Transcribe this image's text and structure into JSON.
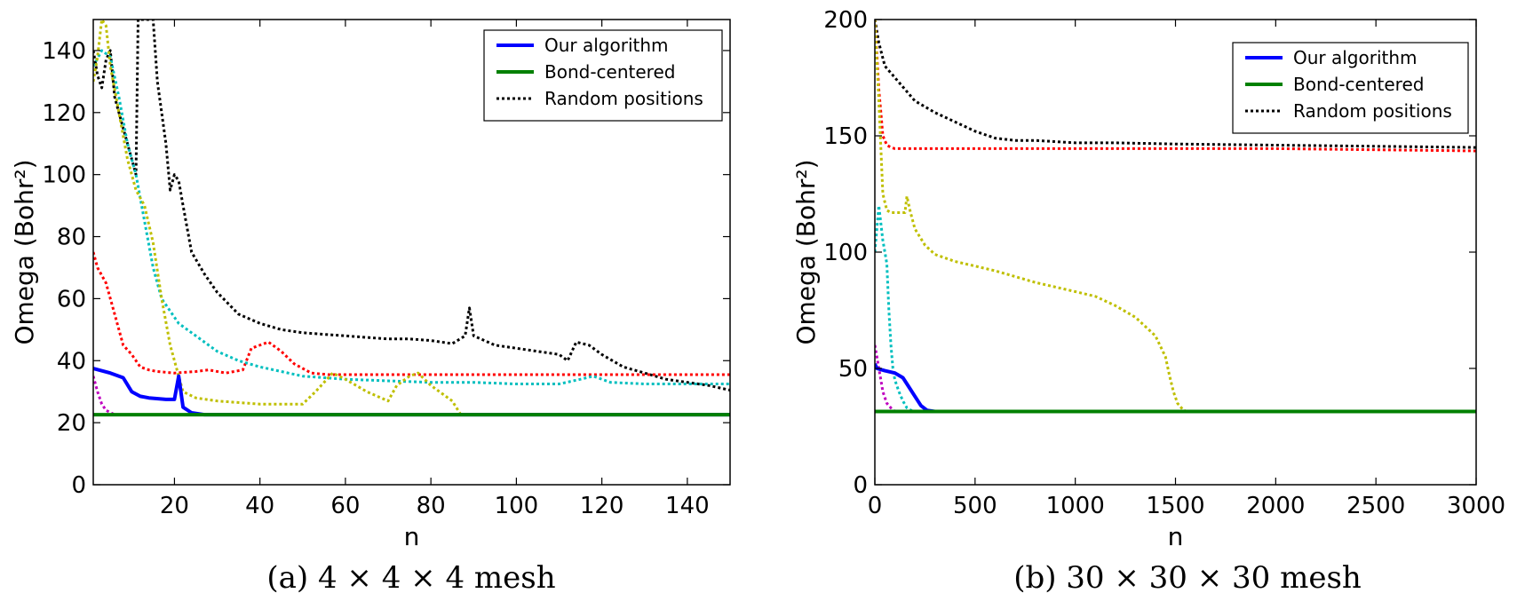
{
  "chart_data": [
    {
      "type": "line",
      "caption": "(a) 4 × 4 × 4 mesh",
      "xlabel": "n",
      "ylabel": "Omega (Bohr²)",
      "xlim": [
        1,
        150
      ],
      "ylim": [
        0,
        150
      ],
      "xticks": [
        20,
        40,
        60,
        80,
        100,
        120,
        140
      ],
      "yticks": [
        0,
        20,
        40,
        60,
        80,
        100,
        120,
        140
      ],
      "legend": {
        "position": "top-right",
        "entries": [
          {
            "label": "Our algorithm",
            "color": "#0000ff",
            "style": "solid"
          },
          {
            "label": "Bond-centered",
            "color": "#008000",
            "style": "solid"
          },
          {
            "label": "Random positions",
            "color": "#000000",
            "style": "dotted"
          }
        ]
      },
      "series": [
        {
          "name": "Our algorithm",
          "color": "#0000ff",
          "style": "solid",
          "x": [
            1,
            5,
            8,
            10,
            12,
            14,
            18,
            20,
            21,
            22,
            24,
            27,
            150
          ],
          "y": [
            37.5,
            36,
            34.5,
            30,
            28.5,
            28,
            27.5,
            27.5,
            35,
            25,
            23.2,
            22.6,
            22.6
          ]
        },
        {
          "name": "Bond-centered",
          "color": "#008000",
          "style": "solid",
          "x": [
            1,
            150
          ],
          "y": [
            22.6,
            22.6
          ]
        },
        {
          "color": "#000000",
          "style": "dotted",
          "x": [
            1,
            2,
            3,
            4,
            5,
            6,
            8,
            9,
            10,
            11,
            11.5,
            12,
            13,
            14,
            15,
            16,
            18,
            19,
            20,
            21,
            22,
            24,
            27,
            30,
            35,
            40,
            45,
            50,
            55,
            60,
            65,
            70,
            75,
            80,
            85,
            88,
            89,
            90,
            95,
            100,
            105,
            110,
            112,
            114,
            117,
            120,
            125,
            130,
            135,
            140,
            145,
            150
          ],
          "y": [
            140,
            132,
            128,
            137,
            140,
            125,
            115,
            110,
            105,
            100,
            150,
            150,
            150,
            150,
            150,
            130,
            110,
            95,
            100,
            98,
            90,
            75,
            68,
            62,
            55,
            52,
            50,
            49,
            48.5,
            48,
            47.5,
            47,
            47,
            46.5,
            45.5,
            48,
            57,
            48,
            45,
            44,
            43,
            42,
            40,
            46,
            45,
            42,
            38,
            36,
            34,
            33,
            32,
            30.5
          ]
        },
        {
          "color": "#ff0000",
          "style": "dotted",
          "x": [
            1,
            2,
            4,
            6,
            8,
            10,
            12,
            14,
            16,
            20,
            25,
            28,
            32,
            36,
            38,
            42,
            45,
            48,
            52,
            56,
            60,
            70,
            80,
            90,
            100,
            120,
            150
          ],
          "y": [
            75,
            70,
            65,
            55,
            45,
            42,
            38,
            37,
            36.5,
            36,
            36.5,
            37,
            36,
            37,
            44,
            46,
            43,
            39,
            36,
            35.5,
            35.5,
            35.5,
            35.5,
            35.5,
            35.5,
            35.5,
            35.5
          ]
        },
        {
          "color": "#00bfbf",
          "style": "dotted",
          "x": [
            1,
            3,
            5,
            7,
            9,
            11,
            13,
            15,
            17,
            19,
            21,
            25,
            30,
            35,
            40,
            50,
            60,
            70,
            80,
            90,
            100,
            110,
            115,
            118,
            122,
            130,
            140,
            150
          ],
          "y": [
            135,
            140,
            138,
            125,
            110,
            100,
            85,
            70,
            60,
            56,
            52,
            48,
            43,
            40,
            38,
            35,
            34,
            33.5,
            33,
            33,
            32.5,
            32.5,
            34,
            35,
            33,
            32.5,
            32.5,
            32.5
          ]
        },
        {
          "color": "#bfbf00",
          "style": "dotted",
          "x": [
            1,
            2,
            3,
            4,
            5,
            7,
            9,
            11,
            13,
            15,
            17,
            19,
            21,
            22,
            25,
            30,
            40,
            50,
            53,
            55,
            57,
            60,
            65,
            70,
            72,
            75,
            77,
            80,
            85,
            87,
            90,
            150
          ],
          "y": [
            130,
            138,
            150,
            148,
            135,
            120,
            105,
            95,
            90,
            78,
            60,
            45,
            35,
            30,
            28,
            27,
            26,
            26,
            30,
            33,
            36,
            34,
            30,
            27,
            32,
            35,
            36,
            32,
            27,
            22.6,
            22.6,
            22.6
          ]
        },
        {
          "color": "#bf00bf",
          "style": "dotted",
          "x": [
            1,
            2,
            3,
            4,
            6,
            150
          ],
          "y": [
            35,
            30,
            26,
            24,
            22.6,
            22.6
          ]
        }
      ]
    },
    {
      "type": "line",
      "caption": "(b) 30 × 30 × 30 mesh",
      "xlabel": "n",
      "ylabel": "Omega (Bohr²)",
      "xlim": [
        0,
        3000
      ],
      "ylim": [
        0,
        200
      ],
      "xticks": [
        0,
        500,
        1000,
        1500,
        2000,
        2500,
        3000
      ],
      "yticks": [
        0,
        50,
        100,
        150,
        200
      ],
      "legend": {
        "position": "top-right",
        "entries": [
          {
            "label": "Our algorithm",
            "color": "#0000ff",
            "style": "solid"
          },
          {
            "label": "Bond-centered",
            "color": "#008000",
            "style": "solid"
          },
          {
            "label": "Random positions",
            "color": "#000000",
            "style": "dotted"
          }
        ]
      },
      "series": [
        {
          "name": "Our algorithm",
          "color": "#0000ff",
          "style": "solid",
          "x": [
            0,
            10,
            50,
            100,
            140,
            170,
            200,
            230,
            260,
            300,
            3000
          ],
          "y": [
            52,
            50,
            49,
            48,
            46,
            42,
            38,
            34,
            32,
            31.5,
            31.5
          ]
        },
        {
          "name": "Bond-centered",
          "color": "#008000",
          "style": "solid",
          "x": [
            0,
            3000
          ],
          "y": [
            31.5,
            31.5
          ]
        },
        {
          "color": "#000000",
          "style": "dotted",
          "x": [
            0,
            20,
            50,
            100,
            150,
            200,
            300,
            400,
            500,
            600,
            700,
            800,
            1000,
            1200,
            1500,
            2000,
            2500,
            3000
          ],
          "y": [
            200,
            190,
            180,
            175,
            170,
            165,
            160,
            156,
            152,
            149,
            148,
            148,
            147,
            147,
            146.5,
            146,
            145.5,
            145
          ]
        },
        {
          "color": "#ff0000",
          "style": "dotted",
          "x": [
            0,
            10,
            20,
            30,
            40,
            60,
            80,
            100,
            500,
            1000,
            1500,
            2000,
            2500,
            3000
          ],
          "y": [
            200,
            185,
            170,
            160,
            150,
            146,
            145,
            144.5,
            144.5,
            144.5,
            144.5,
            144.5,
            144,
            143.5
          ]
        },
        {
          "color": "#00bfbf",
          "style": "dotted",
          "x": [
            0,
            20,
            40,
            50,
            60,
            70,
            80,
            90,
            100,
            120,
            140,
            160,
            180,
            200,
            3000
          ],
          "y": [
            100,
            120,
            105,
            100,
            95,
            75,
            60,
            50,
            45,
            40,
            36,
            33,
            32,
            31.5,
            31.5
          ]
        },
        {
          "color": "#bfbf00",
          "style": "dotted",
          "x": [
            0,
            20,
            40,
            60,
            80,
            100,
            150,
            160,
            175,
            200,
            250,
            300,
            400,
            500,
            600,
            800,
            1000,
            1100,
            1200,
            1300,
            1400,
            1450,
            1470,
            1490,
            1510,
            1540,
            1560,
            3000
          ],
          "y": [
            200,
            165,
            125,
            118,
            117,
            117,
            117,
            124,
            118,
            110,
            103,
            99,
            96,
            94,
            92,
            87,
            83,
            81,
            77,
            72,
            64,
            55,
            47,
            40,
            35,
            32,
            31.5,
            31.5
          ]
        },
        {
          "color": "#bf00bf",
          "style": "dotted",
          "x": [
            0,
            10,
            20,
            30,
            40,
            60,
            80,
            100,
            3000
          ],
          "y": [
            60,
            55,
            50,
            45,
            40,
            35,
            33,
            31.5,
            31.5
          ]
        }
      ]
    }
  ]
}
